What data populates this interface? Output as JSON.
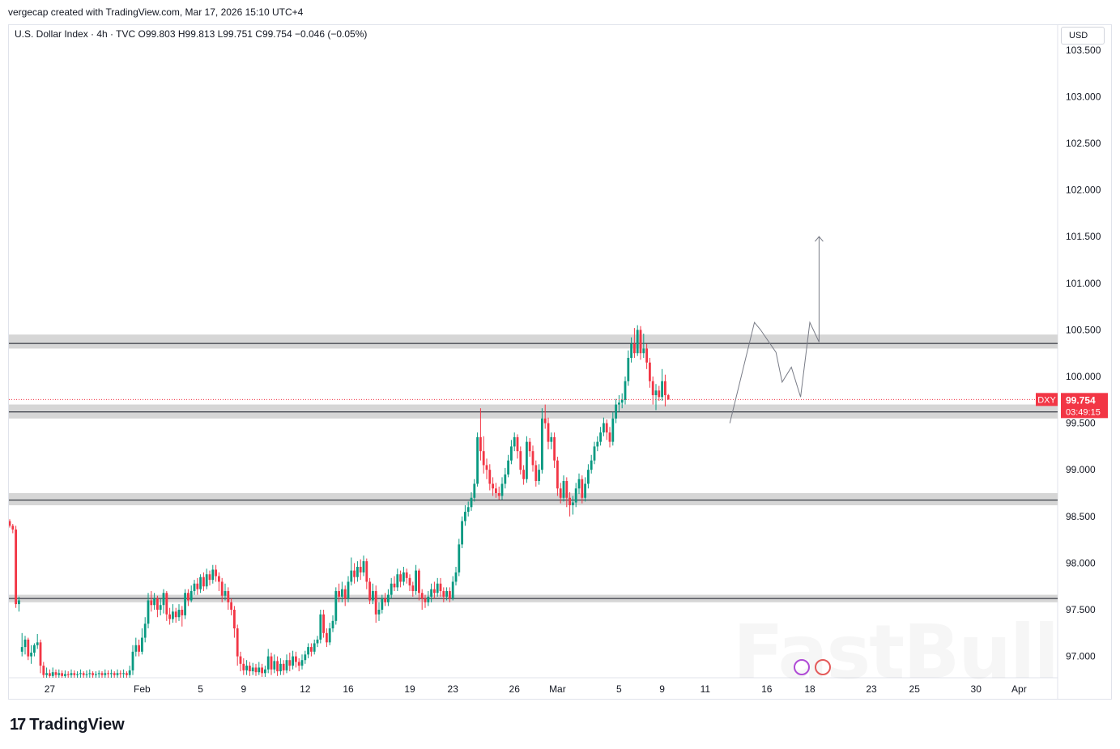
{
  "header": {
    "attribution": "vergecap created with TradingView.com, Mar 17, 2026 15:10 UTC+4",
    "symbol_line": "U.S. Dollar Index · 4h · TVC  O99.803  H99.813  L99.751  C99.754  −0.046 (−0.05%)",
    "currency": "USD"
  },
  "brand": {
    "logo": "17",
    "name": "TradingView"
  },
  "watermark": "FastBull",
  "colors": {
    "up": "#089981",
    "down": "#f23645",
    "zone": "#d6d6d6",
    "line": "#131722",
    "price_label": "#f23645"
  },
  "chart_data": {
    "type": "candlestick",
    "symbol": "DXY",
    "last_price": "99.754",
    "countdown": "03:49:15",
    "ylim": [
      96.77,
      103.6
    ],
    "y_ticks": [
      "103.500",
      "103.000",
      "102.500",
      "102.000",
      "101.500",
      "101.000",
      "100.500",
      "100.000",
      "99.500",
      "99.000",
      "98.500",
      "98.000",
      "97.500",
      "97.000"
    ],
    "x_ticks": [
      {
        "label": "27",
        "bar": 13
      },
      {
        "label": "Feb",
        "bar": 43
      },
      {
        "label": "5",
        "bar": 62
      },
      {
        "label": "9",
        "bar": 76
      },
      {
        "label": "12",
        "bar": 96
      },
      {
        "label": "16",
        "bar": 110
      },
      {
        "label": "19",
        "bar": 130
      },
      {
        "label": "23",
        "bar": 144
      },
      {
        "label": "26",
        "bar": 164
      },
      {
        "label": "Mar",
        "bar": 178
      },
      {
        "label": "5",
        "bar": 198
      },
      {
        "label": "9",
        "bar": 212
      },
      {
        "label": "11",
        "bar": 226
      },
      {
        "label": "16",
        "bar": 246
      },
      {
        "label": "18",
        "bar": 260
      },
      {
        "label": "23",
        "bar": 280
      },
      {
        "label": "25",
        "bar": 294
      },
      {
        "label": "30",
        "bar": 314
      },
      {
        "label": "Apr",
        "bar": 328
      }
    ],
    "zones": [
      {
        "low": 100.3,
        "high": 100.45,
        "line": 100.355
      },
      {
        "low": 99.55,
        "high": 99.7,
        "line": 99.62
      },
      {
        "low": 98.62,
        "high": 98.75,
        "line": 98.675
      },
      {
        "low": 97.58,
        "high": 97.66,
        "line": 97.62
      }
    ],
    "projection": [
      [
        234,
        99.5
      ],
      [
        242,
        100.58
      ],
      [
        244,
        100.5
      ],
      [
        249,
        100.26
      ],
      [
        251,
        99.94
      ],
      [
        254,
        100.1
      ],
      [
        257,
        99.78
      ],
      [
        260,
        100.58
      ],
      [
        263,
        100.37
      ],
      [
        263,
        101.5
      ]
    ],
    "candles": [
      [
        98.45,
        98.4,
        98.47,
        98.38
      ],
      [
        98.4,
        98.36,
        98.42,
        98.32
      ],
      [
        98.36,
        97.56,
        98.4,
        97.52
      ],
      [
        97.56,
        97.6,
        97.64,
        97.48
      ],
      [
        97.05,
        97.1,
        97.25,
        97.0
      ],
      [
        97.1,
        97.18,
        97.22,
        97.02
      ],
      [
        97.18,
        97.0,
        97.2,
        96.96
      ],
      [
        97.0,
        97.04,
        97.12,
        96.92
      ],
      [
        97.04,
        97.12,
        97.14,
        97.0
      ],
      [
        97.12,
        97.15,
        97.24,
        97.08
      ],
      [
        97.15,
        96.9,
        97.18,
        96.82
      ],
      [
        96.9,
        96.8,
        96.94,
        96.76
      ],
      [
        96.8,
        96.82,
        96.88,
        96.77
      ],
      [
        96.82,
        96.79,
        96.86,
        96.77
      ],
      [
        96.79,
        96.83,
        96.88,
        96.77
      ],
      [
        96.83,
        96.8,
        96.86,
        96.77
      ],
      [
        96.8,
        96.82,
        96.86,
        96.77
      ],
      [
        96.82,
        96.79,
        96.85,
        96.77
      ],
      [
        96.79,
        96.81,
        96.85,
        96.77
      ],
      [
        96.81,
        96.8,
        96.84,
        96.77
      ],
      [
        96.8,
        96.82,
        96.86,
        96.77
      ],
      [
        96.82,
        96.8,
        96.85,
        96.77
      ],
      [
        96.8,
        96.81,
        96.84,
        96.77
      ],
      [
        96.81,
        96.82,
        96.86,
        96.77
      ],
      [
        96.82,
        96.8,
        96.84,
        96.77
      ],
      [
        96.8,
        96.81,
        96.85,
        96.77
      ],
      [
        96.81,
        96.82,
        96.86,
        96.77
      ],
      [
        96.82,
        96.8,
        96.84,
        96.77
      ],
      [
        96.8,
        96.81,
        96.84,
        96.77
      ],
      [
        96.81,
        96.82,
        96.85,
        96.77
      ],
      [
        96.82,
        96.8,
        96.84,
        96.77
      ],
      [
        96.8,
        96.82,
        96.86,
        96.77
      ],
      [
        96.82,
        96.81,
        96.85,
        96.77
      ],
      [
        96.81,
        96.82,
        96.86,
        96.77
      ],
      [
        96.82,
        96.8,
        96.84,
        96.77
      ],
      [
        96.8,
        96.82,
        96.86,
        96.77
      ],
      [
        96.82,
        96.81,
        96.85,
        96.77
      ],
      [
        96.81,
        96.82,
        96.86,
        96.77
      ],
      [
        96.82,
        96.8,
        96.84,
        96.77
      ],
      [
        96.8,
        96.85,
        96.9,
        96.77
      ],
      [
        96.85,
        97.05,
        97.12,
        96.8
      ],
      [
        97.05,
        97.12,
        97.2,
        97.0
      ],
      [
        97.12,
        97.05,
        97.18,
        97.0
      ],
      [
        97.05,
        97.2,
        97.3,
        97.02
      ],
      [
        97.2,
        97.35,
        97.42,
        97.15
      ],
      [
        97.35,
        97.6,
        97.68,
        97.3
      ],
      [
        97.6,
        97.55,
        97.7,
        97.48
      ],
      [
        97.55,
        97.62,
        97.68,
        97.5
      ],
      [
        97.62,
        97.5,
        97.65,
        97.42
      ],
      [
        97.5,
        97.55,
        97.62,
        97.44
      ],
      [
        97.55,
        97.68,
        97.72,
        97.46
      ],
      [
        97.68,
        97.45,
        97.7,
        97.38
      ],
      [
        97.45,
        97.4,
        97.52,
        97.34
      ],
      [
        97.4,
        97.48,
        97.56,
        97.36
      ],
      [
        97.48,
        97.42,
        97.52,
        97.36
      ],
      [
        97.42,
        97.5,
        97.56,
        97.38
      ],
      [
        97.5,
        97.44,
        97.54,
        97.32
      ],
      [
        97.44,
        97.68,
        97.72,
        97.4
      ],
      [
        97.68,
        97.6,
        97.72,
        97.54
      ],
      [
        97.6,
        97.7,
        97.76,
        97.58
      ],
      [
        97.7,
        97.78,
        97.82,
        97.66
      ],
      [
        97.78,
        97.72,
        97.84,
        97.66
      ],
      [
        97.72,
        97.85,
        97.88,
        97.68
      ],
      [
        97.85,
        97.75,
        97.9,
        97.7
      ],
      [
        97.75,
        97.88,
        97.94,
        97.72
      ],
      [
        97.88,
        97.82,
        97.92,
        97.76
      ],
      [
        97.82,
        97.93,
        97.98,
        97.78
      ],
      [
        97.93,
        97.86,
        97.98,
        97.8
      ],
      [
        97.86,
        97.8,
        97.9,
        97.7
      ],
      [
        97.8,
        97.65,
        97.84,
        97.58
      ],
      [
        97.65,
        97.7,
        97.78,
        97.6
      ],
      [
        97.7,
        97.58,
        97.74,
        97.5
      ],
      [
        97.58,
        97.5,
        97.62,
        97.44
      ],
      [
        97.5,
        97.3,
        97.54,
        97.2
      ],
      [
        97.3,
        97.0,
        97.34,
        96.9
      ],
      [
        97.0,
        96.92,
        97.05,
        96.84
      ],
      [
        96.92,
        96.85,
        96.98,
        96.8
      ],
      [
        96.85,
        96.9,
        96.96,
        96.8
      ],
      [
        96.9,
        96.84,
        96.94,
        96.79
      ],
      [
        96.84,
        96.88,
        96.93,
        96.8
      ],
      [
        96.88,
        96.83,
        96.92,
        96.79
      ],
      [
        96.83,
        96.88,
        96.94,
        96.8
      ],
      [
        96.88,
        96.82,
        96.92,
        96.78
      ],
      [
        96.82,
        96.86,
        96.9,
        96.78
      ],
      [
        96.86,
        97.0,
        97.08,
        96.82
      ],
      [
        97.0,
        96.86,
        97.04,
        96.8
      ],
      [
        96.86,
        96.95,
        97.02,
        96.82
      ],
      [
        96.95,
        96.84,
        97.0,
        96.79
      ],
      [
        96.84,
        96.92,
        96.98,
        96.8
      ],
      [
        96.92,
        96.85,
        96.96,
        96.8
      ],
      [
        96.85,
        96.96,
        97.02,
        96.82
      ],
      [
        96.96,
        96.9,
        97.04,
        96.84
      ],
      [
        96.9,
        97.0,
        97.06,
        96.86
      ],
      [
        97.0,
        96.94,
        97.05,
        96.88
      ],
      [
        96.94,
        96.9,
        96.98,
        96.84
      ],
      [
        96.9,
        96.96,
        97.02,
        96.86
      ],
      [
        96.96,
        97.02,
        97.06,
        96.92
      ],
      [
        97.02,
        97.1,
        97.14,
        96.98
      ],
      [
        97.1,
        97.05,
        97.14,
        97.0
      ],
      [
        97.05,
        97.14,
        97.18,
        97.02
      ],
      [
        97.14,
        97.18,
        97.22,
        97.1
      ],
      [
        97.18,
        97.45,
        97.5,
        97.14
      ],
      [
        97.45,
        97.25,
        97.5,
        97.2
      ],
      [
        97.25,
        97.15,
        97.3,
        97.1
      ],
      [
        97.15,
        97.3,
        97.36,
        97.12
      ],
      [
        97.3,
        97.38,
        97.44,
        97.26
      ],
      [
        97.38,
        97.7,
        97.74,
        97.34
      ],
      [
        97.7,
        97.64,
        97.78,
        97.58
      ],
      [
        97.64,
        97.72,
        97.8,
        97.58
      ],
      [
        97.72,
        97.62,
        97.76,
        97.54
      ],
      [
        97.62,
        97.8,
        97.86,
        97.58
      ],
      [
        97.8,
        97.92,
        98.06,
        97.76
      ],
      [
        97.92,
        97.85,
        98.0,
        97.78
      ],
      [
        97.85,
        97.96,
        98.02,
        97.8
      ],
      [
        97.96,
        97.9,
        98.04,
        97.82
      ],
      [
        97.9,
        98.02,
        98.08,
        97.86
      ],
      [
        98.02,
        97.8,
        98.05,
        97.72
      ],
      [
        97.8,
        97.6,
        97.84,
        97.56
      ],
      [
        97.6,
        97.7,
        97.78,
        97.56
      ],
      [
        97.7,
        97.45,
        97.76,
        97.36
      ],
      [
        97.45,
        97.5,
        97.58,
        97.38
      ],
      [
        97.5,
        97.62,
        97.66,
        97.46
      ],
      [
        97.62,
        97.58,
        97.68,
        97.54
      ],
      [
        97.58,
        97.66,
        97.72,
        97.54
      ],
      [
        97.66,
        97.78,
        97.84,
        97.62
      ],
      [
        97.78,
        97.74,
        97.86,
        97.7
      ],
      [
        97.74,
        97.88,
        97.94,
        97.7
      ],
      [
        97.88,
        97.8,
        97.92,
        97.74
      ],
      [
        97.8,
        97.9,
        97.96,
        97.76
      ],
      [
        97.9,
        97.84,
        97.94,
        97.78
      ],
      [
        97.84,
        97.76,
        97.88,
        97.7
      ],
      [
        97.76,
        97.7,
        97.8,
        97.64
      ],
      [
        97.7,
        97.92,
        97.98,
        97.66
      ],
      [
        97.92,
        97.68,
        97.94,
        97.6
      ],
      [
        97.68,
        97.62,
        97.72,
        97.5
      ],
      [
        97.62,
        97.58,
        97.66,
        97.52
      ],
      [
        97.58,
        97.64,
        97.7,
        97.54
      ],
      [
        97.64,
        97.72,
        97.78,
        97.58
      ],
      [
        97.72,
        97.68,
        97.8,
        97.62
      ],
      [
        97.68,
        97.78,
        97.84,
        97.64
      ],
      [
        97.78,
        97.7,
        97.84,
        97.64
      ],
      [
        97.7,
        97.64,
        97.74,
        97.58
      ],
      [
        97.64,
        97.7,
        97.74,
        97.6
      ],
      [
        97.7,
        97.62,
        97.74,
        97.58
      ],
      [
        97.62,
        97.8,
        97.86,
        97.6
      ],
      [
        97.8,
        97.9,
        97.96,
        97.76
      ],
      [
        97.9,
        98.2,
        98.26,
        97.86
      ],
      [
        98.2,
        98.45,
        98.5,
        98.16
      ],
      [
        98.45,
        98.55,
        98.62,
        98.4
      ],
      [
        98.55,
        98.6,
        98.66,
        98.5
      ],
      [
        98.6,
        98.7,
        98.76,
        98.56
      ],
      [
        98.7,
        98.85,
        98.9,
        98.66
      ],
      [
        98.85,
        99.35,
        99.4,
        98.82
      ],
      [
        99.35,
        99.2,
        99.66,
        99.1
      ],
      [
        99.2,
        99.05,
        99.36,
        98.96
      ],
      [
        99.05,
        99.0,
        99.12,
        98.9
      ],
      [
        99.0,
        98.85,
        99.06,
        98.78
      ],
      [
        98.85,
        98.8,
        98.92,
        98.72
      ],
      [
        98.8,
        98.75,
        98.86,
        98.7
      ],
      [
        98.75,
        98.72,
        98.82,
        98.68
      ],
      [
        98.72,
        98.85,
        98.92,
        98.68
      ],
      [
        98.85,
        98.95,
        99.02,
        98.8
      ],
      [
        98.95,
        99.1,
        99.16,
        98.92
      ],
      [
        99.1,
        99.25,
        99.32,
        99.06
      ],
      [
        99.25,
        99.35,
        99.4,
        99.2
      ],
      [
        99.35,
        99.2,
        99.38,
        99.12
      ],
      [
        99.2,
        99.0,
        99.25,
        98.95
      ],
      [
        99.0,
        98.9,
        99.05,
        98.84
      ],
      [
        98.9,
        99.3,
        99.36,
        98.86
      ],
      [
        99.3,
        99.2,
        99.34,
        99.14
      ],
      [
        99.2,
        99.05,
        99.26,
        98.98
      ],
      [
        99.05,
        98.88,
        99.1,
        98.82
      ],
      [
        98.88,
        99.0,
        99.06,
        98.84
      ],
      [
        99.0,
        99.55,
        99.66,
        98.96
      ],
      [
        99.55,
        99.5,
        99.7,
        99.44
      ],
      [
        99.5,
        99.3,
        99.56,
        99.22
      ],
      [
        99.3,
        99.35,
        99.4,
        99.22
      ],
      [
        99.35,
        99.1,
        99.4,
        99.02
      ],
      [
        99.1,
        98.8,
        99.14,
        98.72
      ],
      [
        98.8,
        98.7,
        98.86,
        98.64
      ],
      [
        98.7,
        98.88,
        98.94,
        98.66
      ],
      [
        98.88,
        98.7,
        98.92,
        98.6
      ],
      [
        98.7,
        98.62,
        98.76,
        98.5
      ],
      [
        98.62,
        98.65,
        98.72,
        98.52
      ],
      [
        98.65,
        98.8,
        98.86,
        98.6
      ],
      [
        98.8,
        98.9,
        98.96,
        98.74
      ],
      [
        98.9,
        98.7,
        98.94,
        98.64
      ],
      [
        98.7,
        98.85,
        98.92,
        98.66
      ],
      [
        98.85,
        99.0,
        99.06,
        98.8
      ],
      [
        99.0,
        99.1,
        99.16,
        98.96
      ],
      [
        99.1,
        99.25,
        99.3,
        99.06
      ],
      [
        99.25,
        99.3,
        99.36,
        99.2
      ],
      [
        99.3,
        99.4,
        99.46,
        99.26
      ],
      [
        99.4,
        99.5,
        99.56,
        99.36
      ],
      [
        99.5,
        99.4,
        99.54,
        99.32
      ],
      [
        99.4,
        99.3,
        99.46,
        99.24
      ],
      [
        99.3,
        99.55,
        99.62,
        99.26
      ],
      [
        99.55,
        99.7,
        99.76,
        99.5
      ],
      [
        99.7,
        99.72,
        99.8,
        99.62
      ],
      [
        99.72,
        99.75,
        99.82,
        99.66
      ],
      [
        99.75,
        99.95,
        100.0,
        99.7
      ],
      [
        99.95,
        100.2,
        100.28,
        99.9
      ],
      [
        100.2,
        100.35,
        100.42,
        100.15
      ],
      [
        100.35,
        100.25,
        100.52,
        100.2
      ],
      [
        100.25,
        100.5,
        100.55,
        100.22
      ],
      [
        100.5,
        100.25,
        100.54,
        100.18
      ],
      [
        100.25,
        100.3,
        100.46,
        100.2
      ],
      [
        100.3,
        100.15,
        100.35,
        100.08
      ],
      [
        100.15,
        99.95,
        100.2,
        99.88
      ],
      [
        99.95,
        99.8,
        100.0,
        99.7
      ],
      [
        99.8,
        99.85,
        99.92,
        99.64
      ],
      [
        99.85,
        99.78,
        99.9,
        99.74
      ],
      [
        99.78,
        99.95,
        100.08,
        99.74
      ],
      [
        99.95,
        99.8,
        100.02,
        99.68
      ],
      [
        99.8,
        99.754,
        99.813,
        99.751
      ]
    ]
  }
}
